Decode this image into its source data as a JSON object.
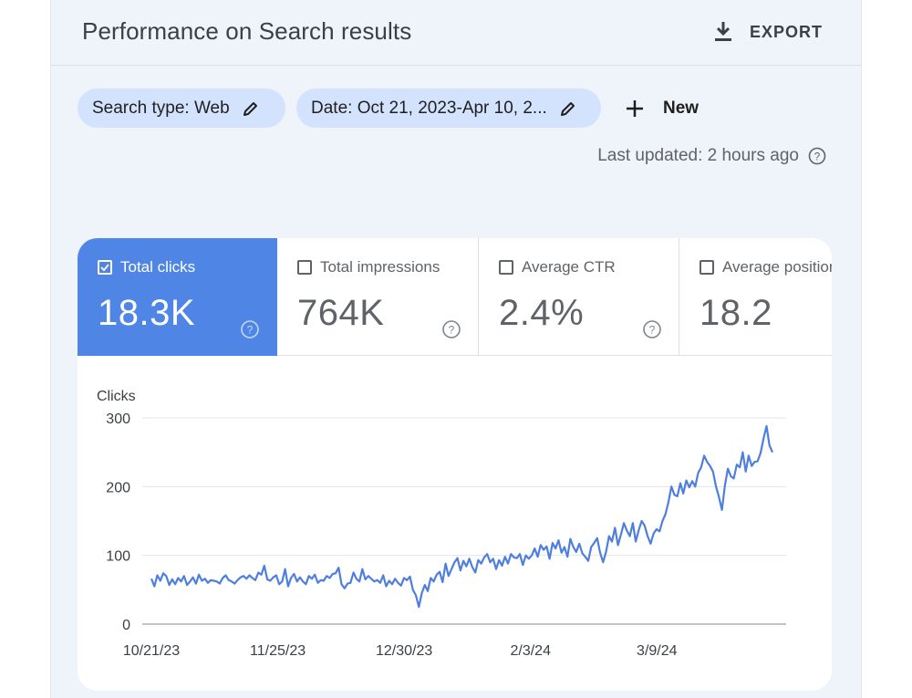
{
  "header": {
    "title": "Performance on Search results",
    "export_label": "EXPORT"
  },
  "filters": {
    "search_type": "Search type: Web",
    "date": "Date: Oct 21, 2023-Apr 10, 2...",
    "new_label": "New"
  },
  "last_updated": "Last updated: 2 hours ago",
  "metrics": [
    {
      "label": "Total clicks",
      "value": "18.3K",
      "checked": true
    },
    {
      "label": "Total impressions",
      "value": "764K",
      "checked": false
    },
    {
      "label": "Average CTR",
      "value": "2.4%",
      "checked": false
    },
    {
      "label": "Average position",
      "value": "18.2",
      "checked": false
    }
  ],
  "colors": {
    "accent": "#4f86e6",
    "chip": "#d3e3fd",
    "line": "#4f7fde"
  },
  "chart_data": {
    "type": "line",
    "ylabel": "Clicks",
    "ylim": [
      0,
      300
    ],
    "yticks": [
      0,
      100,
      200,
      300
    ],
    "x_tick_labels": [
      "10/21/23",
      "11/25/23",
      "12/30/23",
      "2/3/24",
      "3/9/24"
    ],
    "x_start": "10/21/23",
    "x_end": "4/10/24",
    "grid": true,
    "series": [
      {
        "values": [
          66,
          55,
          71,
          63,
          74,
          70,
          57,
          65,
          58,
          67,
          62,
          70,
          57,
          62,
          68,
          59,
          72,
          63,
          66,
          60,
          64,
          63,
          62,
          59,
          67,
          71,
          64,
          62,
          59,
          64,
          68,
          70,
          66,
          71,
          67,
          64,
          75,
          72,
          85,
          65,
          63,
          68,
          71,
          58,
          62,
          80,
          55,
          67,
          73,
          62,
          68,
          62,
          58,
          70,
          66,
          72,
          60,
          64,
          63,
          70,
          67,
          73,
          74,
          82,
          58,
          52,
          59,
          60,
          75,
          66,
          62,
          80,
          65,
          70,
          66,
          62,
          64,
          60,
          71,
          55,
          63,
          58,
          66,
          60,
          56,
          67,
          64,
          69,
          50,
          42,
          25,
          45,
          57,
          48,
          67,
          62,
          72,
          76,
          61,
          88,
          70,
          80,
          90,
          96,
          78,
          92,
          84,
          95,
          83,
          75,
          93,
          88,
          97,
          102,
          90,
          95,
          80,
          93,
          85,
          98,
          88,
          102,
          97,
          96,
          102,
          86,
          100,
          95,
          100,
          110,
          98,
          115,
          108,
          113,
          95,
          118,
          110,
          122,
          104,
          112,
          98,
          124,
          112,
          105,
          117,
          103,
          98,
          92,
          112,
          118,
          125,
          104,
          90,
          105,
          128,
          120,
          140,
          115,
          130,
          147,
          136,
          128,
          147,
          120,
          137,
          150,
          143,
          128,
          117,
          132,
          138,
          135,
          150,
          160,
          178,
          200,
          188,
          186,
          205,
          190,
          209,
          199,
          208,
          200,
          220,
          228,
          245,
          236,
          230,
          222,
          200,
          185,
          166,
          202,
          226,
          215,
          212,
          232,
          228,
          250,
          222,
          245,
          230,
          236,
          237,
          249,
          270,
          288,
          260,
          250
        ]
      }
    ]
  }
}
